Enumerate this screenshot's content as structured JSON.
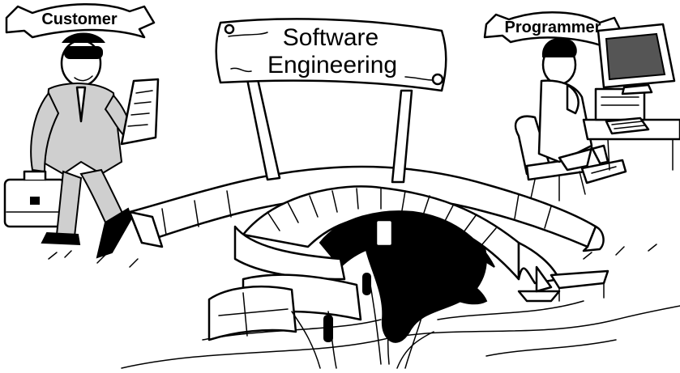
{
  "labels": {
    "customer": "Customer",
    "programmer": "Programmer",
    "sign_line1": "Software",
    "sign_line2": "Engineering"
  },
  "colors": {
    "ink": "#000000",
    "paper": "#ffffff",
    "shade": "#cfcfcf"
  }
}
